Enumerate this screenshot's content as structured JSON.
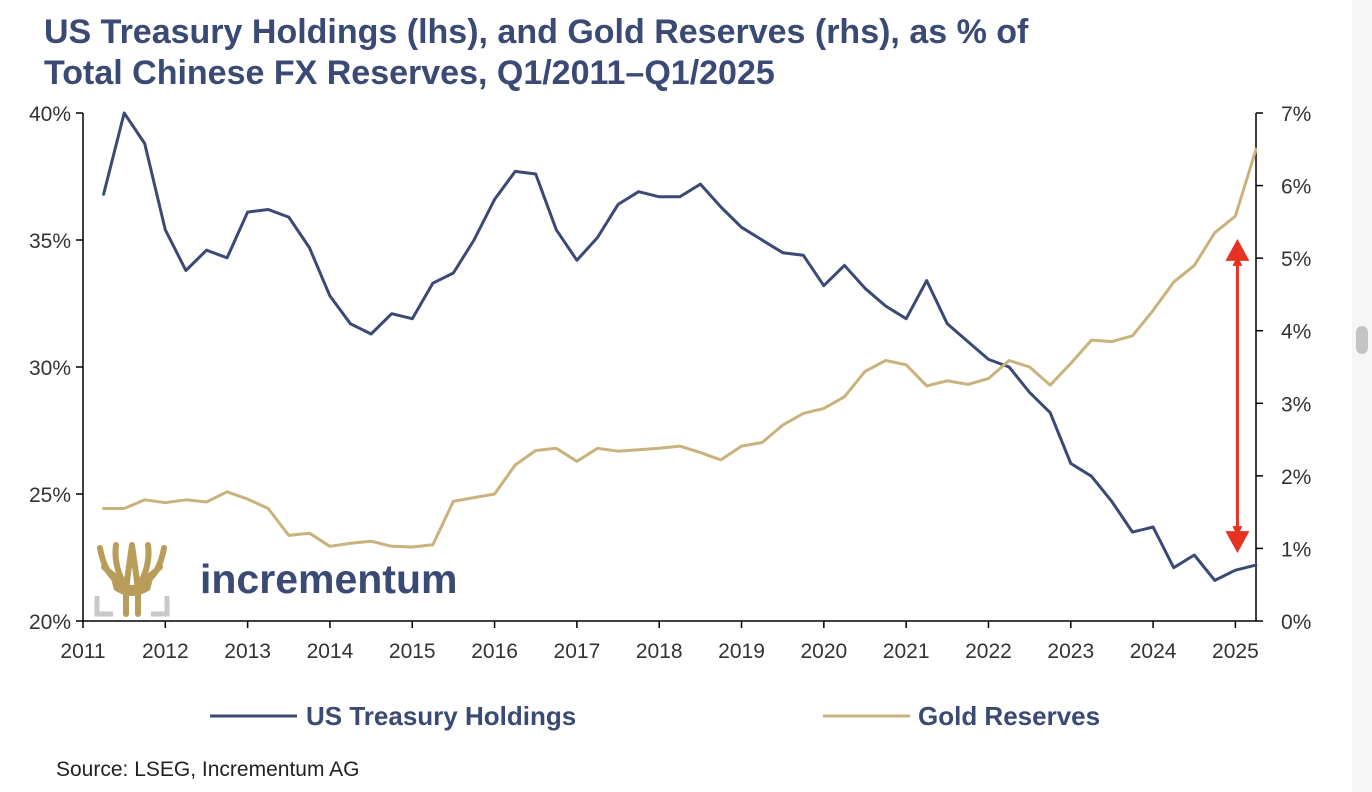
{
  "title_line1": "US Treasury Holdings (lhs), and Gold Reserves (rhs), as % of",
  "title_line2": "Total Chinese FX Reserves, Q1/2011–Q1/2025",
  "source": "Source: LSEG, Incrementum AG",
  "logo": {
    "text": "incrementum",
    "icon": "tree-logo-icon"
  },
  "colors": {
    "treasury": "#3b4a74",
    "gold": "#c9b27c",
    "arrow": "#e53223",
    "text": "#333333"
  },
  "chart_data": {
    "type": "line",
    "title": "US Treasury Holdings (lhs), and Gold Reserves (rhs), as % of Total Chinese FX Reserves, Q1/2011–Q1/2025",
    "x_ticks": [
      "2011",
      "2012",
      "2013",
      "2014",
      "2015",
      "2016",
      "2017",
      "2018",
      "2019",
      "2020",
      "2021",
      "2022",
      "2023",
      "2024",
      "2025"
    ],
    "left_axis": {
      "min": 20,
      "max": 40,
      "ticks": [
        "20%",
        "25%",
        "30%",
        "35%",
        "40%"
      ]
    },
    "right_axis": {
      "min": 0,
      "max": 7,
      "ticks": [
        "0%",
        "1%",
        "2%",
        "3%",
        "4%",
        "5%",
        "6%",
        "7%"
      ]
    },
    "series": [
      {
        "name": "US Treasury Holdings",
        "axis": "left",
        "points": [
          [
            2011.25,
            36.8
          ],
          [
            2011.5,
            40.0
          ],
          [
            2011.75,
            38.8
          ],
          [
            2012.0,
            35.4
          ],
          [
            2012.25,
            33.8
          ],
          [
            2012.5,
            34.6
          ],
          [
            2012.75,
            34.3
          ],
          [
            2013.0,
            36.1
          ],
          [
            2013.25,
            36.2
          ],
          [
            2013.5,
            35.9
          ],
          [
            2013.75,
            34.7
          ],
          [
            2014.0,
            32.8
          ],
          [
            2014.25,
            31.7
          ],
          [
            2014.5,
            31.3
          ],
          [
            2014.75,
            32.1
          ],
          [
            2015.0,
            31.9
          ],
          [
            2015.25,
            33.3
          ],
          [
            2015.5,
            33.7
          ],
          [
            2015.75,
            35.0
          ],
          [
            2016.0,
            36.6
          ],
          [
            2016.25,
            37.7
          ],
          [
            2016.5,
            37.6
          ],
          [
            2016.75,
            35.4
          ],
          [
            2017.0,
            34.2
          ],
          [
            2017.25,
            35.1
          ],
          [
            2017.5,
            36.4
          ],
          [
            2017.75,
            36.9
          ],
          [
            2018.0,
            36.7
          ],
          [
            2018.25,
            36.7
          ],
          [
            2018.5,
            37.2
          ],
          [
            2018.75,
            36.3
          ],
          [
            2019.0,
            35.5
          ],
          [
            2019.25,
            35.0
          ],
          [
            2019.5,
            34.5
          ],
          [
            2019.75,
            34.4
          ],
          [
            2020.0,
            33.2
          ],
          [
            2020.25,
            34.0
          ],
          [
            2020.5,
            33.1
          ],
          [
            2020.75,
            32.4
          ],
          [
            2021.0,
            31.9
          ],
          [
            2021.25,
            33.4
          ],
          [
            2021.5,
            31.7
          ],
          [
            2021.75,
            31.0
          ],
          [
            2022.0,
            30.3
          ],
          [
            2022.25,
            30.0
          ],
          [
            2022.5,
            29.0
          ],
          [
            2022.75,
            28.2
          ],
          [
            2023.0,
            26.2
          ],
          [
            2023.25,
            25.7
          ],
          [
            2023.5,
            24.7
          ],
          [
            2023.75,
            23.5
          ],
          [
            2024.0,
            23.7
          ],
          [
            2024.25,
            22.1
          ],
          [
            2024.5,
            22.6
          ],
          [
            2024.75,
            21.6
          ],
          [
            2025.0,
            22.0
          ],
          [
            2025.25,
            22.2
          ]
        ]
      },
      {
        "name": "Gold Reserves",
        "axis": "right",
        "points": [
          [
            2011.25,
            1.55
          ],
          [
            2011.5,
            1.55
          ],
          [
            2011.75,
            1.67
          ],
          [
            2012.0,
            1.63
          ],
          [
            2012.25,
            1.67
          ],
          [
            2012.5,
            1.64
          ],
          [
            2012.75,
            1.78
          ],
          [
            2013.0,
            1.68
          ],
          [
            2013.25,
            1.55
          ],
          [
            2013.5,
            1.18
          ],
          [
            2013.75,
            1.21
          ],
          [
            2014.0,
            1.03
          ],
          [
            2014.25,
            1.07
          ],
          [
            2014.5,
            1.1
          ],
          [
            2014.75,
            1.03
          ],
          [
            2015.0,
            1.02
          ],
          [
            2015.25,
            1.05
          ],
          [
            2015.5,
            1.65
          ],
          [
            2015.75,
            1.7
          ],
          [
            2016.0,
            1.75
          ],
          [
            2016.25,
            2.15
          ],
          [
            2016.5,
            2.35
          ],
          [
            2016.75,
            2.38
          ],
          [
            2017.0,
            2.2
          ],
          [
            2017.25,
            2.38
          ],
          [
            2017.5,
            2.34
          ],
          [
            2017.75,
            2.36
          ],
          [
            2018.0,
            2.38
          ],
          [
            2018.25,
            2.41
          ],
          [
            2018.5,
            2.32
          ],
          [
            2018.75,
            2.22
          ],
          [
            2019.0,
            2.41
          ],
          [
            2019.25,
            2.46
          ],
          [
            2019.5,
            2.7
          ],
          [
            2019.75,
            2.86
          ],
          [
            2020.0,
            2.93
          ],
          [
            2020.25,
            3.09
          ],
          [
            2020.5,
            3.44
          ],
          [
            2020.75,
            3.59
          ],
          [
            2021.0,
            3.53
          ],
          [
            2021.25,
            3.24
          ],
          [
            2021.5,
            3.31
          ],
          [
            2021.75,
            3.26
          ],
          [
            2022.0,
            3.34
          ],
          [
            2022.25,
            3.59
          ],
          [
            2022.5,
            3.5
          ],
          [
            2022.75,
            3.25
          ],
          [
            2023.0,
            3.55
          ],
          [
            2023.25,
            3.87
          ],
          [
            2023.5,
            3.85
          ],
          [
            2023.75,
            3.93
          ],
          [
            2024.0,
            4.28
          ],
          [
            2024.25,
            4.67
          ],
          [
            2024.5,
            4.9
          ],
          [
            2024.75,
            5.35
          ],
          [
            2025.0,
            5.58
          ],
          [
            2025.25,
            6.5
          ]
        ]
      }
    ],
    "annotation": {
      "type": "double-arrow",
      "x": 2025.0,
      "from": 1.1,
      "to": 5.1
    },
    "legend_placement": "bottom",
    "grid": false
  }
}
